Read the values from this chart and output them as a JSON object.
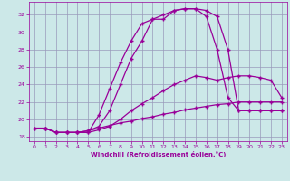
{
  "xlabel": "Windchill (Refroidissement éolien,°C)",
  "xlim": [
    -0.5,
    23.5
  ],
  "ylim": [
    17.5,
    33.5
  ],
  "yticks": [
    18,
    20,
    22,
    24,
    26,
    28,
    30,
    32
  ],
  "xticks": [
    0,
    1,
    2,
    3,
    4,
    5,
    6,
    7,
    8,
    9,
    10,
    11,
    12,
    13,
    14,
    15,
    16,
    17,
    18,
    19,
    20,
    21,
    22,
    23
  ],
  "bg_color": "#cce8e8",
  "grid_color": "#9999bb",
  "line_color": "#990099",
  "line0_x": [
    0,
    1,
    2,
    3,
    4,
    5,
    6,
    7,
    8,
    9,
    10,
    11,
    12,
    13,
    14,
    15,
    16,
    17,
    18,
    19,
    20,
    21,
    22,
    23
  ],
  "line0_y": [
    19.0,
    19.0,
    18.5,
    18.5,
    18.5,
    18.7,
    19.0,
    19.3,
    19.6,
    19.8,
    20.1,
    20.3,
    20.6,
    20.8,
    21.1,
    21.3,
    21.5,
    21.7,
    21.8,
    22.0,
    22.0,
    22.0,
    22.0,
    22.0
  ],
  "line1_x": [
    0,
    1,
    2,
    3,
    4,
    5,
    6,
    7,
    8,
    9,
    10,
    11,
    12,
    13,
    14,
    15,
    16,
    17,
    18,
    19,
    20,
    21,
    22,
    23
  ],
  "line1_y": [
    19.0,
    19.0,
    18.5,
    18.5,
    18.5,
    18.5,
    18.8,
    19.2,
    20.0,
    21.0,
    21.8,
    22.5,
    23.3,
    24.0,
    24.5,
    25.0,
    24.8,
    24.5,
    24.8,
    25.0,
    25.0,
    24.8,
    24.5,
    22.5
  ],
  "line2_x": [
    1,
    2,
    3,
    4,
    5,
    6,
    7,
    8,
    9,
    10,
    11,
    12,
    13,
    14,
    15,
    16,
    17,
    18,
    19,
    20,
    21,
    22,
    23
  ],
  "line2_y": [
    19.0,
    18.5,
    18.5,
    18.5,
    18.5,
    20.5,
    23.5,
    26.5,
    29.0,
    31.0,
    31.5,
    32.0,
    32.5,
    32.7,
    32.7,
    32.5,
    31.8,
    28.0,
    21.0,
    21.0,
    21.0,
    21.0,
    21.0
  ],
  "line3_x": [
    1,
    2,
    3,
    4,
    5,
    6,
    7,
    8,
    9,
    10,
    11,
    12,
    13,
    14,
    15,
    16,
    17,
    18,
    19,
    20,
    21,
    22,
    23
  ],
  "line3_y": [
    19.0,
    18.5,
    18.5,
    18.5,
    18.7,
    19.2,
    21.0,
    24.0,
    27.0,
    29.0,
    31.5,
    31.5,
    32.5,
    32.7,
    32.7,
    31.8,
    28.0,
    22.5,
    21.0,
    21.0,
    21.0,
    21.0,
    21.0
  ]
}
